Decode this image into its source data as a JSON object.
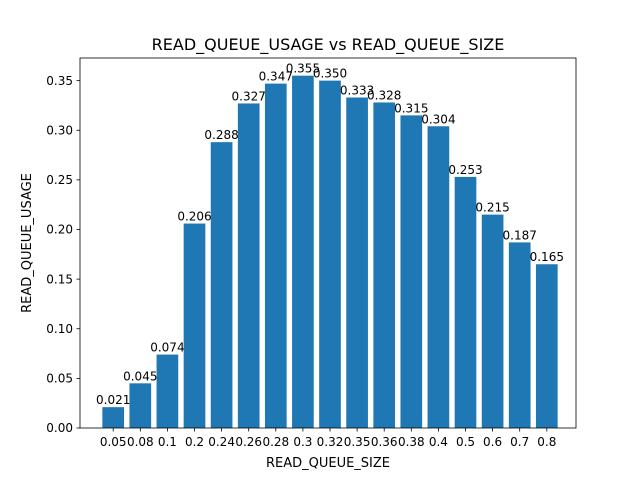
{
  "chart_data": {
    "type": "bar",
    "title": "READ_QUEUE_USAGE vs READ_QUEUE_SIZE",
    "xlabel": "READ_QUEUE_SIZE",
    "ylabel": "READ_QUEUE_USAGE",
    "categories": [
      "0.05",
      "0.08",
      "0.1",
      "0.2",
      "0.24",
      "0.26",
      "0.28",
      "0.3",
      "0.32",
      "0.35",
      "0.36",
      "0.38",
      "0.4",
      "0.5",
      "0.6",
      "0.7",
      "0.8"
    ],
    "values": [
      0.021,
      0.045,
      0.074,
      0.206,
      0.288,
      0.327,
      0.347,
      0.355,
      0.35,
      0.333,
      0.328,
      0.315,
      0.304,
      0.253,
      0.215,
      0.187,
      0.165
    ],
    "value_labels": [
      "0.021",
      "0.045",
      "0.074",
      "0.206",
      "0.288",
      "0.327",
      "0.347",
      "0.355",
      "0.350",
      "0.333",
      "0.328",
      "0.315",
      "0.304",
      "0.253",
      "0.215",
      "0.187",
      "0.165"
    ],
    "yticks": [
      0.0,
      0.05,
      0.1,
      0.15,
      0.2,
      0.25,
      0.3,
      0.35
    ],
    "ytick_labels": [
      "0.00",
      "0.05",
      "0.10",
      "0.15",
      "0.20",
      "0.25",
      "0.30",
      "0.35"
    ],
    "ylim": [
      0,
      0.3728
    ],
    "grid": false,
    "legend": "none",
    "bar_color": "#1f77b4"
  }
}
